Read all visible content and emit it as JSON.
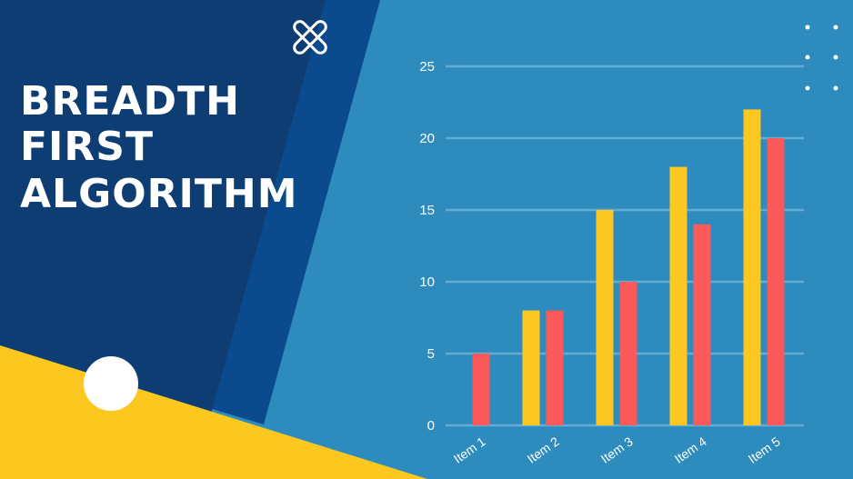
{
  "title": {
    "line1": "BREADTH",
    "line2": "FIRST",
    "line3": "ALGORITHM"
  },
  "colors": {
    "background": "#2e8bbd",
    "dark_panel": "#0e3d73",
    "mid_panel": "#0b4a8c",
    "accent_yellow": "#fcc81f",
    "bar_yellow": "#fdc722",
    "bar_red": "#fb5a5a",
    "text": "#ffffff"
  },
  "icons": [
    "close-x-icon",
    "dot-grid-icon",
    "circle-decoration"
  ],
  "chart_data": {
    "type": "bar",
    "categories": [
      "Item 1",
      "Item 2",
      "Item 3",
      "Item 4",
      "Item 5"
    ],
    "series": [
      {
        "values": [
          0,
          8,
          15,
          18,
          22
        ],
        "color": "#fdc722"
      },
      {
        "values": [
          5,
          8,
          10,
          14,
          20
        ],
        "color": "#fb5a5a"
      }
    ],
    "yticks": [
      "0",
      "5",
      "10",
      "15",
      "20",
      "25"
    ],
    "ylim": [
      0,
      25
    ],
    "grid": true,
    "legend": "none"
  }
}
